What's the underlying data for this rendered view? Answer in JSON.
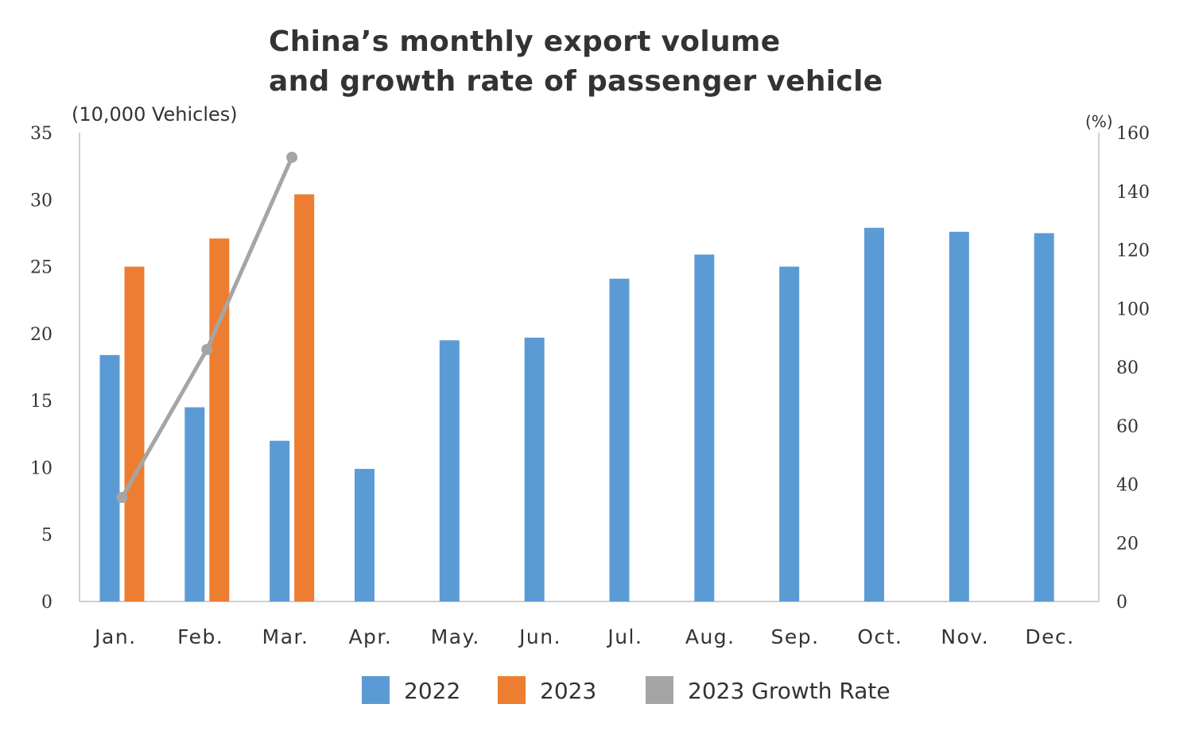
{
  "chart_data": {
    "type": "bar",
    "title_line1": "China’s monthly export volume",
    "title_line2": "and growth rate of passenger vehicle",
    "ylabel_left": "(10,000 Vehicles)",
    "ylabel_right": "(%)",
    "categories": [
      "Jan.",
      "Feb.",
      "Mar.",
      "Apr.",
      "May.",
      "Jun.",
      "Jul.",
      "Aug.",
      "Sep.",
      "Oct.",
      "Nov.",
      "Dec."
    ],
    "ylim_left": [
      0,
      35
    ],
    "yticks_left": [
      0,
      5,
      10,
      15,
      20,
      25,
      30,
      35
    ],
    "ylim_right": [
      0,
      160
    ],
    "yticks_right": [
      0,
      20,
      40,
      60,
      80,
      100,
      120,
      140,
      160
    ],
    "grid": false,
    "legend_position": "bottom",
    "series": [
      {
        "name": "2022",
        "type": "bar",
        "axis": "left",
        "color": "#5b9bd5",
        "values": [
          18.4,
          14.5,
          12.0,
          9.9,
          19.5,
          19.7,
          24.1,
          25.9,
          25.0,
          27.9,
          27.6,
          27.5
        ]
      },
      {
        "name": "2023",
        "type": "bar",
        "axis": "left",
        "color": "#ed7d31",
        "values": [
          25.0,
          27.1,
          30.4,
          null,
          null,
          null,
          null,
          null,
          null,
          null,
          null,
          null
        ]
      },
      {
        "name": "2023 Growth Rate",
        "type": "line",
        "axis": "right",
        "color": "#a5a5a5",
        "values": [
          35.5,
          86,
          151.6,
          null,
          null,
          null,
          null,
          null,
          null,
          null,
          null,
          null
        ]
      }
    ]
  }
}
